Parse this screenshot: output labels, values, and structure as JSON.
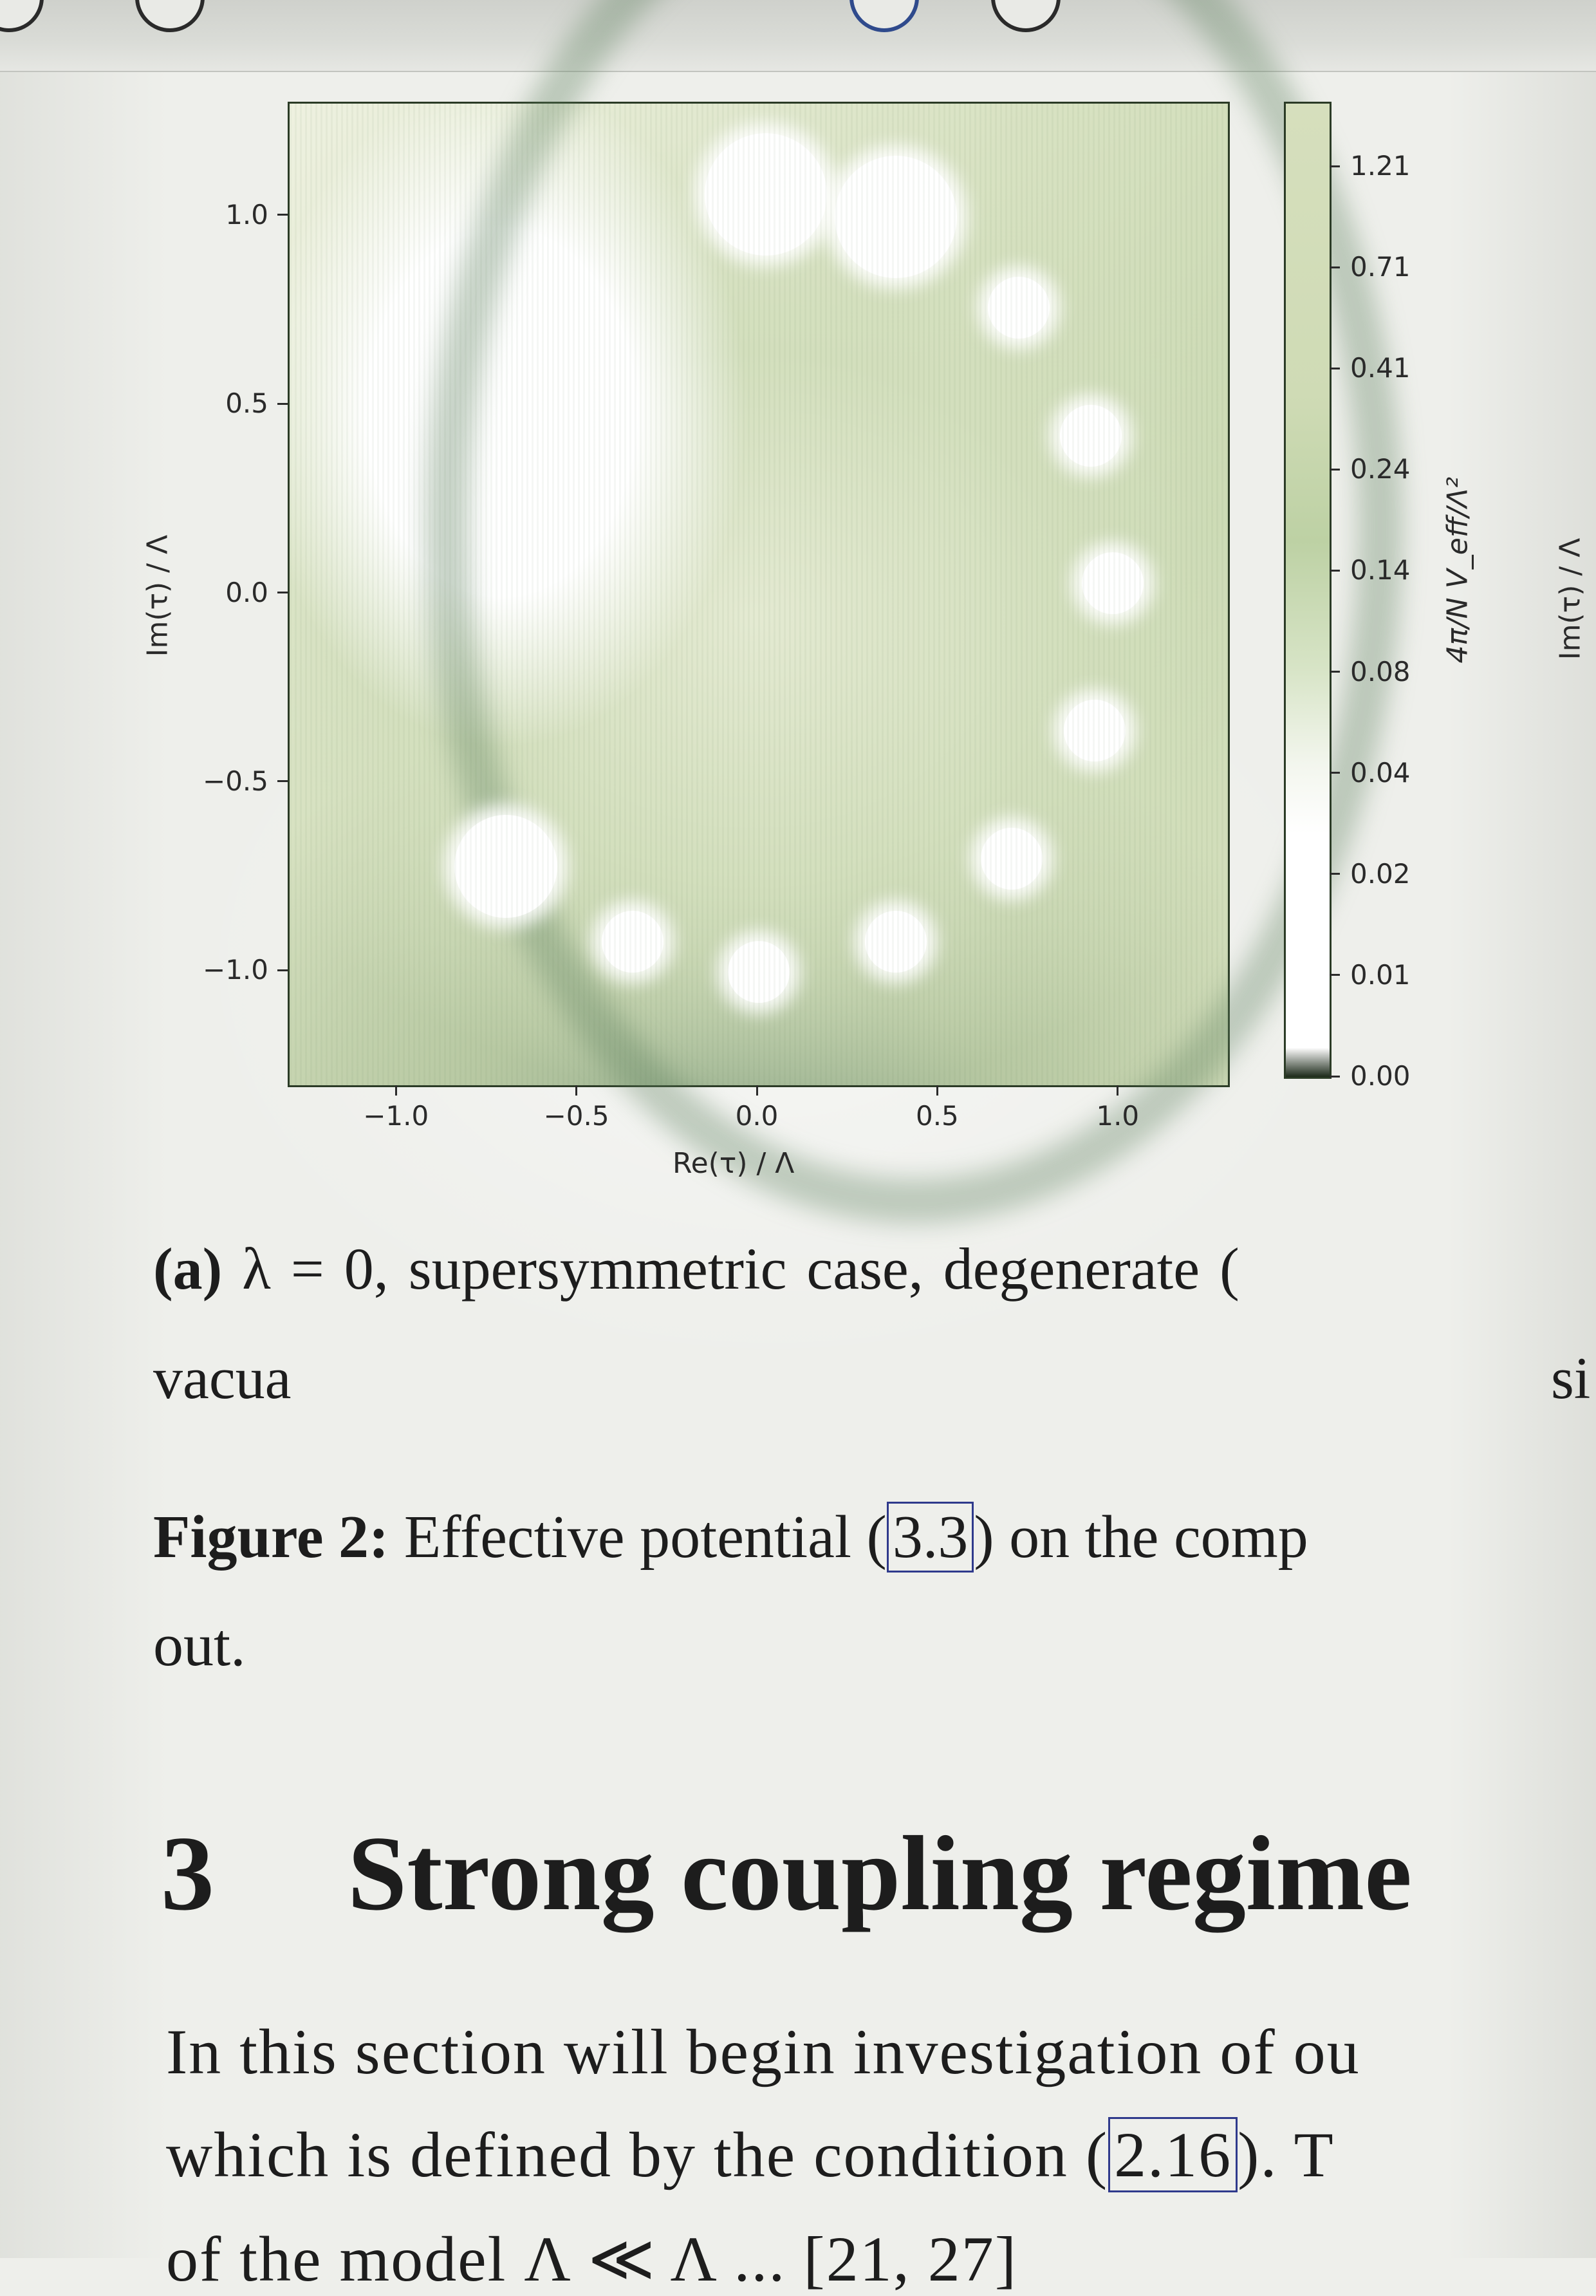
{
  "chart_data": {
    "type": "heatmap",
    "title": "",
    "xlabel": "Re(τ) / Λ",
    "ylabel": "Im(τ) / Λ",
    "xlim": [
      -1.3,
      1.3
    ],
    "ylim": [
      -1.3,
      1.3
    ],
    "x_ticks": [
      "−1.0",
      "−0.5",
      "0.0",
      "0.5",
      "1.0"
    ],
    "y_ticks": [
      "1.0",
      "0.5",
      "0.0",
      "−0.5",
      "−1.0"
    ],
    "x_tick_values": [
      -1.0,
      -0.5,
      0.0,
      0.5,
      1.0
    ],
    "y_tick_values": [
      1.0,
      0.5,
      0.0,
      -0.5,
      -1.0
    ],
    "colorbar": {
      "label": "4π/N V_eff/Λ²",
      "ticks": [
        "1.21",
        "0.71",
        "0.41",
        "0.24",
        "0.14",
        "0.08",
        "0.04",
        "0.02",
        "0.01",
        "0.00"
      ],
      "tick_values": [
        1.21,
        0.71,
        0.41,
        0.24,
        0.14,
        0.08,
        0.04,
        0.02,
        0.01,
        0.0
      ],
      "scale": "log-like",
      "colormap": [
        "#ffffff",
        "#e8eedc",
        "#b9cfa0",
        "#1d2a1a"
      ]
    },
    "minima": [
      {
        "x": -0.35,
        "y": -0.92
      },
      {
        "x": 0.0,
        "y": -1.0
      },
      {
        "x": 0.38,
        "y": -0.92
      },
      {
        "x": 0.7,
        "y": -0.7
      },
      {
        "x": 0.93,
        "y": -0.36
      },
      {
        "x": 0.98,
        "y": 0.03
      },
      {
        "x": 0.92,
        "y": 0.42
      },
      {
        "x": 0.72,
        "y": 0.76
      },
      {
        "x": 0.38,
        "y": 1.0
      },
      {
        "x": 0.02,
        "y": 1.06
      },
      {
        "x": -0.7,
        "y": -0.72
      }
    ],
    "partial_axis_label_right": "Im(τ) / Λ"
  },
  "text": {
    "caption_a_label": "(a)",
    "caption_a_text": "λ = 0, supersymmetric case, degenerate (",
    "caption_a_line2": "vacua",
    "caption_b_fragment": "si",
    "figure_label": "Figure 2:",
    "figure_text_1": "Effective potential (",
    "figure_ref": "3.3",
    "figure_text_2": ") on the comp",
    "figure_line2": "out.",
    "section_number": "3",
    "section_title": "Strong coupling regime",
    "body_line1": "In this section will begin investigation of ou",
    "body_line2_a": "which is defined by the condition (",
    "body_ref": "2.16",
    "body_line2_b": ").  T",
    "body_line3": "of the model Λ ≪ Λ ...  [21, 27]"
  }
}
